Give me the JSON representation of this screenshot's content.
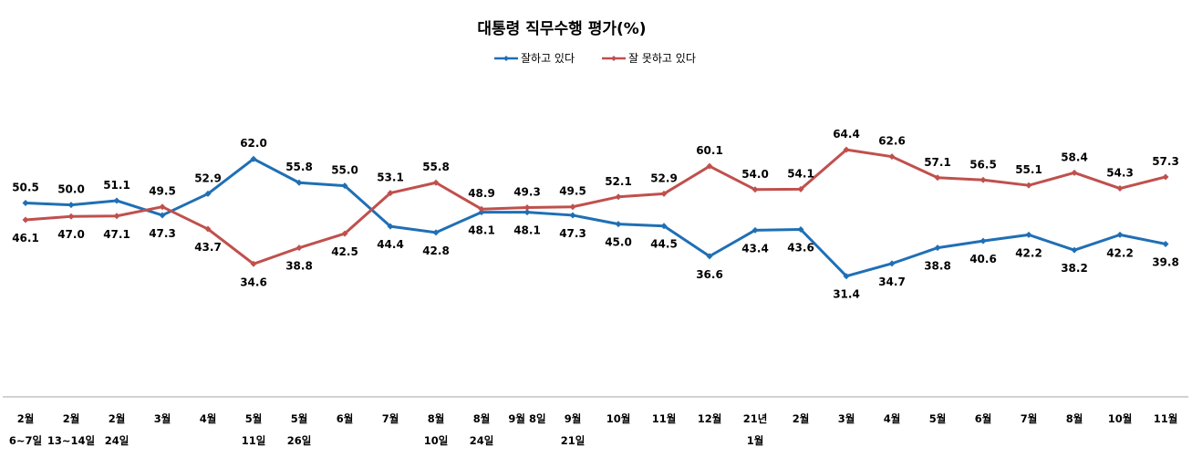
{
  "chart_data": {
    "type": "line",
    "title": "대통령 직무수행 평가(%)",
    "categories": [
      [
        "2월",
        "6~7일"
      ],
      [
        "2월",
        "13~14일"
      ],
      [
        "2월",
        "24일"
      ],
      [
        "3월"
      ],
      [
        "4월"
      ],
      [
        "5월",
        "11일"
      ],
      [
        "5월",
        "26일"
      ],
      [
        "6월"
      ],
      [
        "7월"
      ],
      [
        "8월",
        "10일"
      ],
      [
        "8월",
        "24일"
      ],
      [
        "9월 8일"
      ],
      [
        "9월",
        "21일"
      ],
      [
        "10월"
      ],
      [
        "11월"
      ],
      [
        "12월"
      ],
      [
        "21년",
        "1월"
      ],
      [
        "2월"
      ],
      [
        "3월"
      ],
      [
        "4월"
      ],
      [
        "5월"
      ],
      [
        "6월"
      ],
      [
        "7월"
      ],
      [
        "8월"
      ],
      [
        "10월"
      ],
      [
        "11월"
      ]
    ],
    "series": [
      {
        "name": "잘하고 있다",
        "color": "#1f6fb5",
        "values": [
          50.5,
          50.0,
          51.1,
          47.3,
          52.9,
          62.0,
          55.8,
          55.0,
          44.4,
          42.8,
          48.1,
          48.1,
          47.3,
          45.0,
          44.5,
          36.6,
          43.4,
          43.6,
          31.4,
          34.7,
          38.8,
          40.6,
          42.2,
          38.2,
          42.2,
          39.8
        ]
      },
      {
        "name": "잘 못하고 있다",
        "color": "#c0504d",
        "values": [
          46.1,
          47.0,
          47.1,
          49.5,
          43.7,
          34.6,
          38.8,
          42.5,
          53.1,
          55.8,
          48.9,
          49.3,
          49.5,
          52.1,
          52.9,
          60.1,
          54.0,
          54.1,
          64.4,
          62.6,
          57.1,
          56.5,
          55.1,
          58.4,
          54.3,
          57.3
        ]
      }
    ],
    "legend_position": "top",
    "grid": false
  }
}
